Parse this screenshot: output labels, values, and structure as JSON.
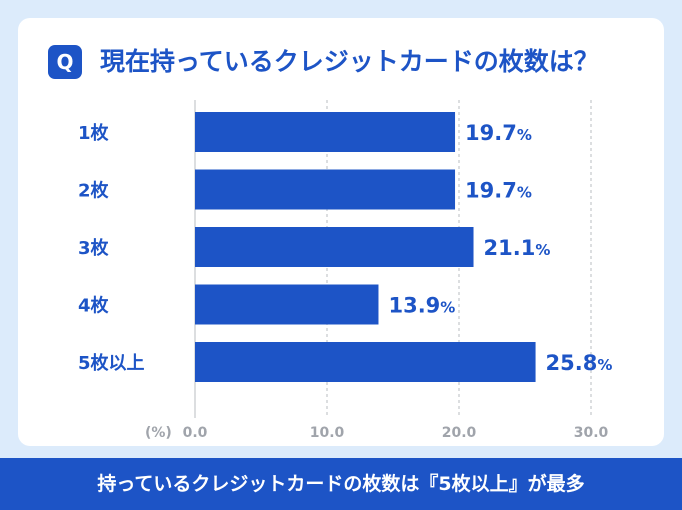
{
  "title_badge": "Q",
  "title": "現在持っているクレジットカードの枚数は？",
  "footer": "持っているクレジットカードの枚数は『5枚以上』が最多",
  "chart_data": {
    "type": "bar",
    "orientation": "horizontal",
    "categories": [
      "1枚",
      "2枚",
      "3枚",
      "4枚",
      "5枚以上"
    ],
    "values": [
      19.7,
      19.7,
      21.1,
      13.9,
      25.8
    ],
    "value_labels": [
      "19.7",
      "19.7",
      "21.1",
      "13.9",
      "25.8"
    ],
    "value_unit": "%",
    "xlabel": "(%)",
    "x_ticks": [
      "0.0",
      "10.0",
      "20.0",
      "30.0"
    ],
    "x_tick_values": [
      0,
      10,
      20,
      30
    ],
    "xlim": [
      0,
      30
    ],
    "grid": true,
    "bar_color": "#1d54c6",
    "text_color": "#1d54c6",
    "axis_text_color": "#a0a4ab"
  }
}
